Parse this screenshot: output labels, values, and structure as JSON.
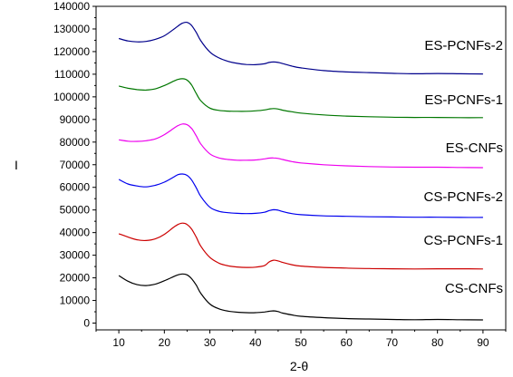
{
  "chart_data": {
    "type": "line",
    "title": "",
    "xlabel": "2-θ",
    "ylabel": "I",
    "xlim": [
      5,
      95
    ],
    "ylim": [
      -3000,
      140000
    ],
    "x_ticks": [
      10,
      20,
      30,
      40,
      50,
      60,
      70,
      80,
      90
    ],
    "y_ticks": [
      0,
      10000,
      20000,
      30000,
      40000,
      50000,
      60000,
      70000,
      80000,
      90000,
      100000,
      110000,
      120000,
      130000,
      140000
    ],
    "grid": false,
    "legend": "none",
    "x": [
      10,
      12,
      14,
      16,
      18,
      20,
      22,
      23,
      24,
      25,
      26,
      27,
      28,
      30,
      32,
      34,
      36,
      38,
      40,
      42,
      43,
      44,
      45,
      46,
      48,
      50,
      55,
      60,
      65,
      70,
      75,
      80,
      85,
      90
    ],
    "series": [
      {
        "name": "CS-CNFs",
        "color": "#000000",
        "values": [
          21000,
          18500,
          17000,
          16600,
          17200,
          18700,
          20500,
          21300,
          21700,
          21300,
          19600,
          16800,
          13200,
          8400,
          6300,
          5300,
          4800,
          4600,
          4600,
          4900,
          5200,
          5400,
          5100,
          4400,
          3600,
          3000,
          2400,
          2000,
          1800,
          1600,
          1500,
          1600,
          1500,
          1400
        ]
      },
      {
        "name": "CS-PCNFs-1",
        "color": "#cc0000",
        "values": [
          39500,
          38000,
          36800,
          36500,
          37200,
          39200,
          42300,
          43600,
          44200,
          43600,
          41500,
          38000,
          34000,
          29000,
          26500,
          25300,
          24800,
          24600,
          24700,
          25400,
          27000,
          27800,
          27500,
          26800,
          25800,
          25200,
          24600,
          24300,
          24100,
          24000,
          23900,
          24000,
          24000,
          23900
        ]
      },
      {
        "name": "CS-PCNFs-2",
        "color": "#0000ee",
        "values": [
          63500,
          61500,
          60600,
          60200,
          60900,
          62300,
          64500,
          65600,
          65900,
          65300,
          63200,
          59800,
          56000,
          51200,
          49400,
          48800,
          48500,
          48400,
          48500,
          49000,
          49700,
          50100,
          49900,
          49300,
          48400,
          47900,
          47400,
          47200,
          47000,
          46900,
          46800,
          46800,
          46700,
          46700
        ]
      },
      {
        "name": "ES-CNFs",
        "color": "#ee00ee",
        "values": [
          81000,
          80400,
          80300,
          80600,
          81400,
          83300,
          86000,
          87300,
          88000,
          87700,
          86000,
          82800,
          79200,
          74800,
          73000,
          72300,
          72000,
          72000,
          72100,
          72600,
          72900,
          73000,
          72800,
          72300,
          71400,
          70800,
          70000,
          69500,
          69200,
          69000,
          68900,
          68900,
          68800,
          68700
        ]
      },
      {
        "name": "ES-PCNFs-1",
        "color": "#007700",
        "values": [
          104800,
          103800,
          103200,
          103000,
          103500,
          105000,
          106900,
          107700,
          108000,
          107400,
          105200,
          101500,
          98300,
          95000,
          94000,
          93700,
          93600,
          93600,
          93800,
          94200,
          94600,
          94800,
          94600,
          94100,
          93400,
          92800,
          92000,
          91500,
          91200,
          91000,
          90900,
          90900,
          90800,
          90800
        ]
      },
      {
        "name": "ES-PCNFs-2",
        "color": "#00008b",
        "values": [
          125800,
          124700,
          124300,
          124500,
          125400,
          127000,
          129800,
          131300,
          132600,
          132900,
          131500,
          128500,
          124800,
          119800,
          117200,
          115700,
          114800,
          114300,
          114200,
          114600,
          115200,
          115400,
          115200,
          114700,
          113600,
          112800,
          111600,
          111000,
          110700,
          110400,
          110200,
          110300,
          110200,
          110100
        ]
      }
    ],
    "series_labels": [
      {
        "text": "ES-PCNFs-2"
      },
      {
        "text": "ES-PCNFs-1"
      },
      {
        "text": "ES-CNFs"
      },
      {
        "text": "CS-PCNFs-2"
      },
      {
        "text": "CS-PCNFs-1"
      },
      {
        "text": "CS-CNFs"
      }
    ]
  }
}
